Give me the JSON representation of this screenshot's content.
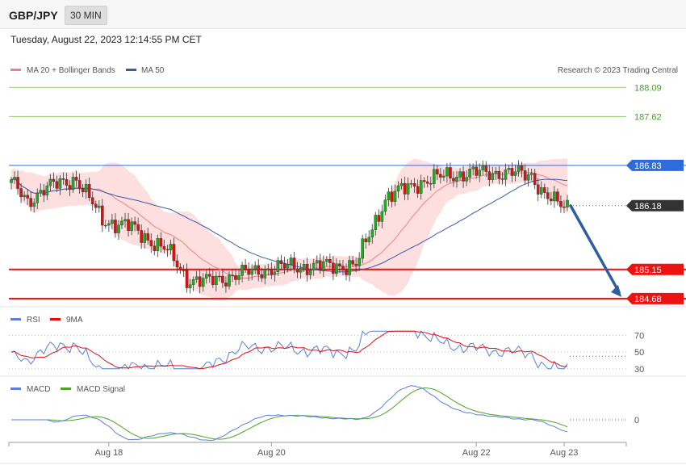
{
  "header": {
    "symbol": "GBP/JPY",
    "timeframe": "30 MIN",
    "datetime": "Tuesday, August 22, 2023 12:14:55 PM CET"
  },
  "colors": {
    "up": "#22aa22",
    "down": "#dd1111",
    "bollinger_fill": "#fdd9d9",
    "ma20": "#f08080",
    "ma50": "#3b5ba8",
    "resistance_green": "#8fce72",
    "pivot_blue": "#2e6bdc",
    "support_red": "#ee1111",
    "current": "#333333",
    "rsi": "#5b7fd9",
    "rsi_ma": "#e01010",
    "macd": "#5b7fd9",
    "macd_signal": "#4aa520",
    "arrow": "#2f5d9e"
  },
  "chart_data": [
    {
      "type": "line",
      "name": "price",
      "legend": [
        {
          "label": "MA 20 + Bollinger Bands",
          "color": "#f08080"
        },
        {
          "label": "MA 50",
          "color": "#3b5ba8"
        }
      ],
      "credit": "Research © 2023 Trading Central",
      "ylim": [
        184.6,
        188.25
      ],
      "x_ticks": [
        {
          "i": 30,
          "label": "Aug 18"
        },
        {
          "i": 80,
          "label": "Aug 20"
        },
        {
          "i": 143,
          "label": "Aug 22"
        },
        {
          "i": 170,
          "label": "Aug 23"
        }
      ],
      "levels": [
        {
          "value": 188.09,
          "label": "188.09",
          "kind": "resistance"
        },
        {
          "value": 187.62,
          "label": "187.62",
          "kind": "resistance"
        },
        {
          "value": 186.83,
          "label": "186.83",
          "kind": "pivot"
        },
        {
          "value": 186.18,
          "label": "186.18",
          "kind": "current"
        },
        {
          "value": 185.15,
          "label": "185.15",
          "kind": "support"
        },
        {
          "value": 184.68,
          "label": "184.68",
          "kind": "support"
        }
      ],
      "arrow": {
        "from": [
          174,
          186.18
        ],
        "to": [
          184,
          184.68
        ]
      }
    },
    {
      "type": "line",
      "name": "rsi",
      "legend": [
        {
          "label": "RSI",
          "color": "#5b7fd9"
        },
        {
          "label": "9MA",
          "color": "#e01010"
        }
      ],
      "ylim": [
        25,
        80
      ],
      "levels": [
        70,
        50,
        30
      ],
      "current": 45
    },
    {
      "type": "line",
      "name": "macd",
      "legend": [
        {
          "label": "MACD",
          "color": "#5b7fd9"
        },
        {
          "label": "MACD Signal",
          "color": "#4aa520"
        }
      ],
      "ylim": [
        -0.35,
        0.4
      ],
      "zero_label": "0",
      "current": 0
    }
  ]
}
